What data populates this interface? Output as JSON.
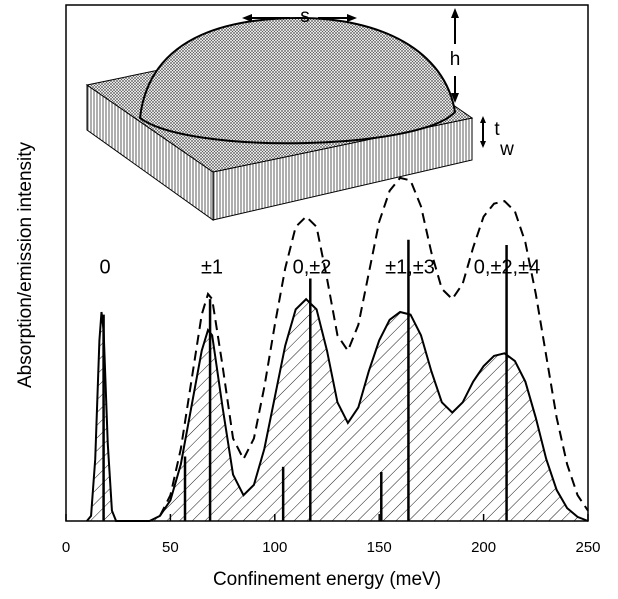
{
  "chart_data": {
    "type": "line",
    "x_label": "Confinement energy (meV)",
    "y_label": "Absorption/emission intensity",
    "xlim": [
      0,
      250
    ],
    "xticks": [
      0,
      50,
      100,
      150,
      200,
      250
    ],
    "ylim": [
      0,
      1
    ],
    "grid": false,
    "series": [
      {
        "style": "solid",
        "fill": "hatch",
        "color": "#000000",
        "x": [
          10,
          12,
          14,
          16,
          17,
          18,
          20,
          22,
          24,
          40,
          45,
          50,
          55,
          60,
          65,
          68,
          70,
          75,
          80,
          85,
          90,
          95,
          100,
          105,
          110,
          115,
          120,
          125,
          130,
          135,
          140,
          145,
          150,
          155,
          160,
          165,
          170,
          175,
          180,
          185,
          190,
          195,
          200,
          205,
          210,
          215,
          220,
          225,
          230,
          235,
          240,
          245,
          250
        ],
        "values": [
          0,
          0.01,
          0.12,
          0.35,
          0.405,
          0.37,
          0.15,
          0.02,
          0,
          0,
          0.01,
          0.04,
          0.11,
          0.22,
          0.33,
          0.37,
          0.36,
          0.22,
          0.09,
          0.05,
          0.07,
          0.14,
          0.24,
          0.34,
          0.41,
          0.43,
          0.41,
          0.33,
          0.23,
          0.19,
          0.22,
          0.29,
          0.35,
          0.39,
          0.405,
          0.4,
          0.36,
          0.29,
          0.23,
          0.21,
          0.23,
          0.27,
          0.3,
          0.32,
          0.325,
          0.31,
          0.27,
          0.2,
          0.12,
          0.06,
          0.025,
          0.008,
          0
        ]
      },
      {
        "style": "dashed",
        "color": "#000000",
        "x": [
          45,
          50,
          55,
          60,
          65,
          68,
          70,
          75,
          80,
          85,
          90,
          95,
          100,
          105,
          110,
          115,
          120,
          125,
          130,
          135,
          140,
          145,
          150,
          155,
          160,
          165,
          170,
          175,
          180,
          185,
          190,
          195,
          200,
          205,
          210,
          215,
          220,
          225,
          230,
          235,
          240,
          245,
          250
        ],
        "values": [
          0.01,
          0.05,
          0.14,
          0.27,
          0.4,
          0.44,
          0.43,
          0.3,
          0.16,
          0.12,
          0.16,
          0.26,
          0.38,
          0.49,
          0.57,
          0.59,
          0.57,
          0.47,
          0.36,
          0.33,
          0.38,
          0.48,
          0.58,
          0.64,
          0.665,
          0.66,
          0.61,
          0.52,
          0.45,
          0.43,
          0.46,
          0.53,
          0.59,
          0.615,
          0.62,
          0.6,
          0.54,
          0.44,
          0.32,
          0.2,
          0.11,
          0.05,
          0.02
        ]
      },
      {
        "style": "stick",
        "color": "#000000",
        "x": [
          18,
          57,
          69,
          104,
          117,
          151,
          164,
          211
        ],
        "values": [
          0.4,
          0.125,
          0.43,
          0.105,
          0.47,
          0.095,
          0.545,
          0.535
        ]
      }
    ],
    "annotations": [
      "0",
      "±1",
      "0,±2",
      "±1,±3",
      "0,±2,±4"
    ],
    "inset_labels": {
      "s": "s",
      "h": "h",
      "t": "t",
      "w": "w"
    }
  }
}
